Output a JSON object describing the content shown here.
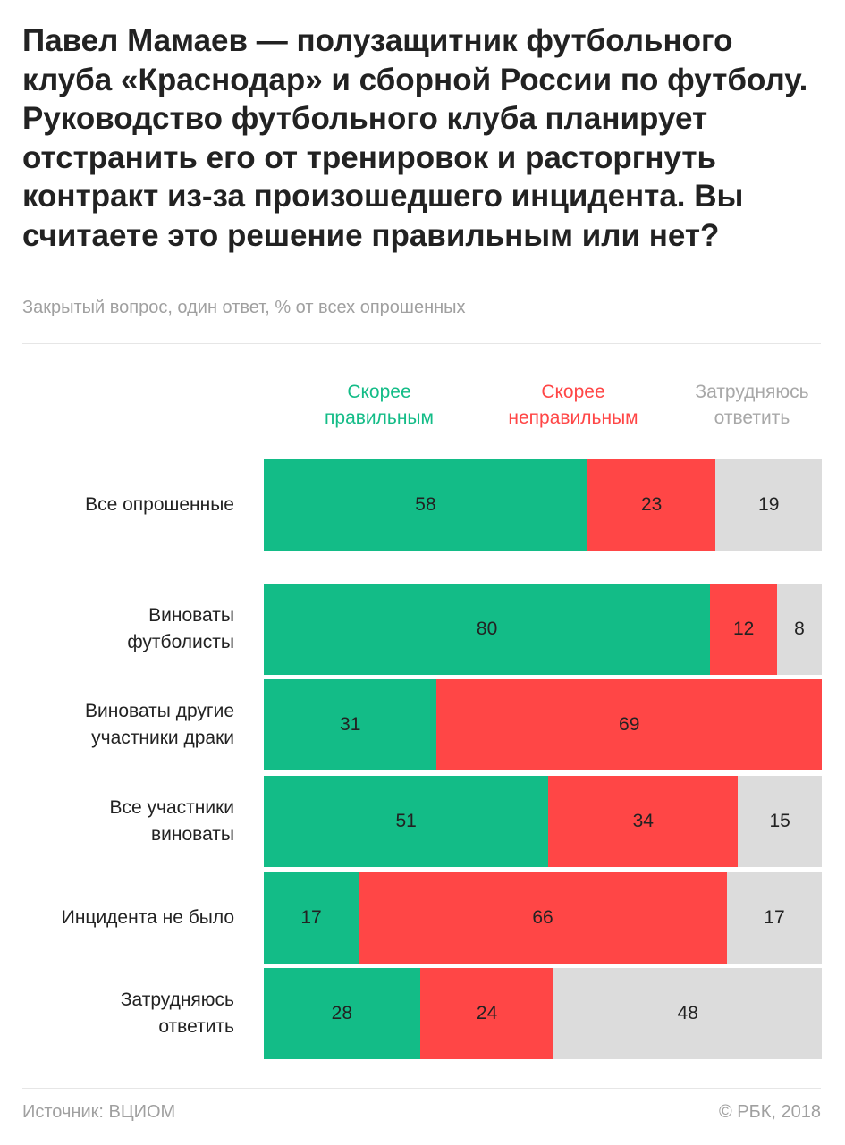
{
  "title": "Павел Мамаев — полузащитник футбольного клуба «Краснодар» и сборной России по футболу. Руководство футбольного клуба планирует отстранить его от тренировок и расторгнуть контракт из-за произошедшего инцидента. Вы считаете это решение правильным или нет?",
  "subtitle": "Закрытый вопрос, один ответ, % от всех опрошенных",
  "footer": {
    "source": "Источник: ВЦИОМ",
    "copyright": "© РБК, 2018"
  },
  "chart_data": {
    "type": "bar",
    "orientation": "horizontal-stacked-100",
    "xlim": [
      0,
      100
    ],
    "grid": false,
    "legend_placement": "top",
    "series": [
      {
        "name": "Скорее правильным",
        "color": "#13bc87",
        "values": [
          58,
          80,
          31,
          51,
          17,
          28
        ]
      },
      {
        "name": "Скорее неправильным",
        "color": "#ff4646",
        "values": [
          23,
          12,
          69,
          34,
          66,
          24
        ]
      },
      {
        "name": "Затрудняюсь ответить",
        "color": "#dcdcdc",
        "values": [
          19,
          8,
          0,
          15,
          17,
          48
        ]
      }
    ],
    "categories": [
      "Все опрошенные",
      "Виноваты футболисты",
      "Виноваты другие участники драки",
      "Все участники виноваты",
      "Инцидента не было",
      "Затрудняюсь ответить"
    ],
    "category_lines": [
      [
        "Все опрошенные"
      ],
      [
        "Виноваты",
        "футболисты"
      ],
      [
        "Виноваты другие",
        "участники драки"
      ],
      [
        "Все участники",
        "виноваты"
      ],
      [
        "Инцидента не было"
      ],
      [
        "Затрудняюсь",
        "ответить"
      ]
    ],
    "legend_lines": [
      [
        "Скорее",
        "правильным"
      ],
      [
        "Скорее",
        "неправильным"
      ],
      [
        "Затрудняюсь",
        "ответить"
      ]
    ]
  }
}
